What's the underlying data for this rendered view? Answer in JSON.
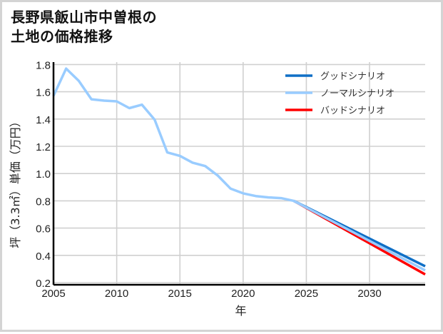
{
  "title": {
    "line1": "長野県飯山市中曽根の",
    "line2": "土地の価格推移"
  },
  "chart_data": {
    "type": "line",
    "title": "長野県飯山市中曽根の土地の価格推移",
    "xlabel": "年",
    "ylabel": "坪（3.3㎡）単価（万円）",
    "xlim": [
      2005,
      2034.4
    ],
    "ylim": [
      0.2,
      1.83
    ],
    "x_ticks": [
      2005,
      2010,
      2015,
      2020,
      2025,
      2030
    ],
    "y_ticks": [
      0.2,
      0.4,
      0.6,
      0.8,
      1.0,
      1.2,
      1.4,
      1.6,
      1.8
    ],
    "y_tick_labels": [
      "0.2",
      "0.4",
      "0.6",
      "0.8",
      "1.0",
      "1.2",
      "1.4",
      "1.6",
      "1.8"
    ],
    "grid": true,
    "legend_position": "upper right",
    "series": [
      {
        "name": "グッドシナリオ",
        "color": "#0f6fc6",
        "x": [
          2024,
          2034.4
        ],
        "values": [
          0.8,
          0.32
        ]
      },
      {
        "name": "ノーマルシナリオ",
        "color": "#99ccff",
        "x": [
          2005,
          2006,
          2007,
          2008,
          2009,
          2010,
          2011,
          2012,
          2013,
          2014,
          2015,
          2016,
          2017,
          2018,
          2019,
          2020,
          2021,
          2022,
          2023,
          2024,
          2034.4
        ],
        "values": [
          1.57,
          1.77,
          1.68,
          1.545,
          1.535,
          1.53,
          1.48,
          1.505,
          1.395,
          1.155,
          1.13,
          1.08,
          1.055,
          0.985,
          0.89,
          0.855,
          0.835,
          0.825,
          0.82,
          0.8,
          0.29
        ]
      },
      {
        "name": "バッドシナリオ",
        "color": "#ff0000",
        "x": [
          2024,
          2034.4
        ],
        "values": [
          0.8,
          0.26
        ]
      }
    ]
  }
}
